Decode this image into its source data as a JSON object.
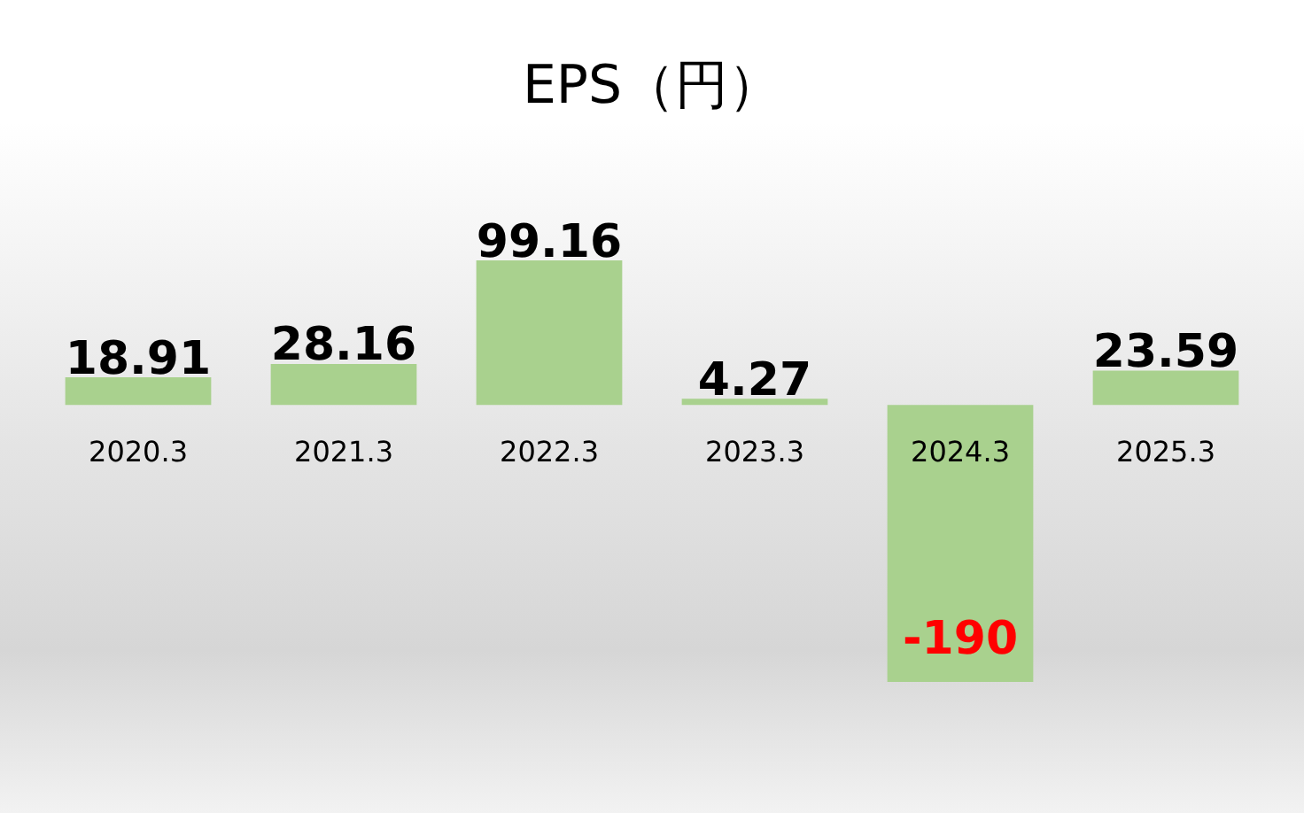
{
  "chart_data": {
    "type": "bar",
    "title": "EPS（円）",
    "categories": [
      "2020.3",
      "2021.3",
      "2022.3",
      "2023.3",
      "2024.3",
      "2025.3"
    ],
    "values": [
      18.91,
      28.16,
      99.16,
      4.27,
      -190,
      23.59
    ],
    "color": "#a9d18e",
    "data_labels": true,
    "grid": false,
    "legend": false,
    "tick_labels": "x"
  }
}
